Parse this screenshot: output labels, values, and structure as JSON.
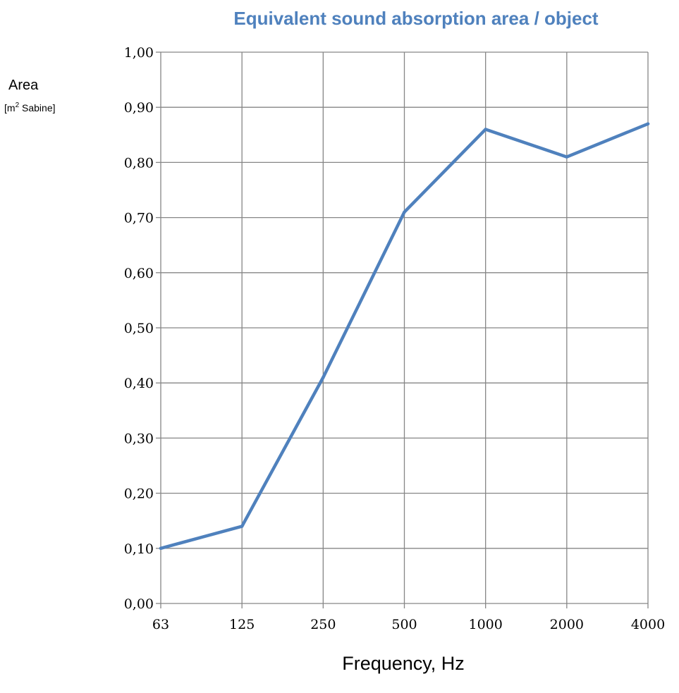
{
  "chart_data": {
    "type": "line",
    "title": "Equivalent sound absorption area / object",
    "ylabel": "Area",
    "yunit_prefix": "[m",
    "yunit_sup": "2",
    "yunit_suffix": " Sabine]",
    "xlabel": "Frequency, Hz",
    "categories": [
      "63",
      "125",
      "250",
      "500",
      "1000",
      "2000",
      "4000"
    ],
    "series": [
      {
        "values": [
          0.1,
          0.14,
          0.41,
          0.71,
          0.86,
          0.81,
          0.87
        ],
        "color": "#4f81bd"
      }
    ],
    "ylim": [
      0,
      1
    ],
    "yticks": [
      "0,00",
      "0,10",
      "0,20",
      "0,30",
      "0,40",
      "0,50",
      "0,60",
      "0,70",
      "0,80",
      "0,90",
      "1,00"
    ],
    "grid": true,
    "gridColor": "#868686"
  }
}
